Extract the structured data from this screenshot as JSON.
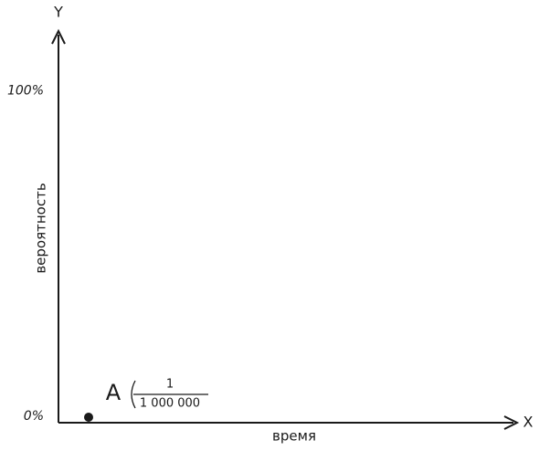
{
  "chart_data": {
    "type": "scatter",
    "y_axis_symbol": "Y",
    "x_axis_symbol": "X",
    "y_label": "вероятность",
    "x_label": "время",
    "ylim": [
      0,
      120
    ],
    "yticks": [
      {
        "value": 0,
        "label": "0%"
      },
      {
        "value": 100,
        "label": "100%"
      }
    ],
    "points": [
      {
        "label": "A",
        "value": 0.0001,
        "numerator": "1",
        "denominator": "1 000 000"
      }
    ]
  }
}
